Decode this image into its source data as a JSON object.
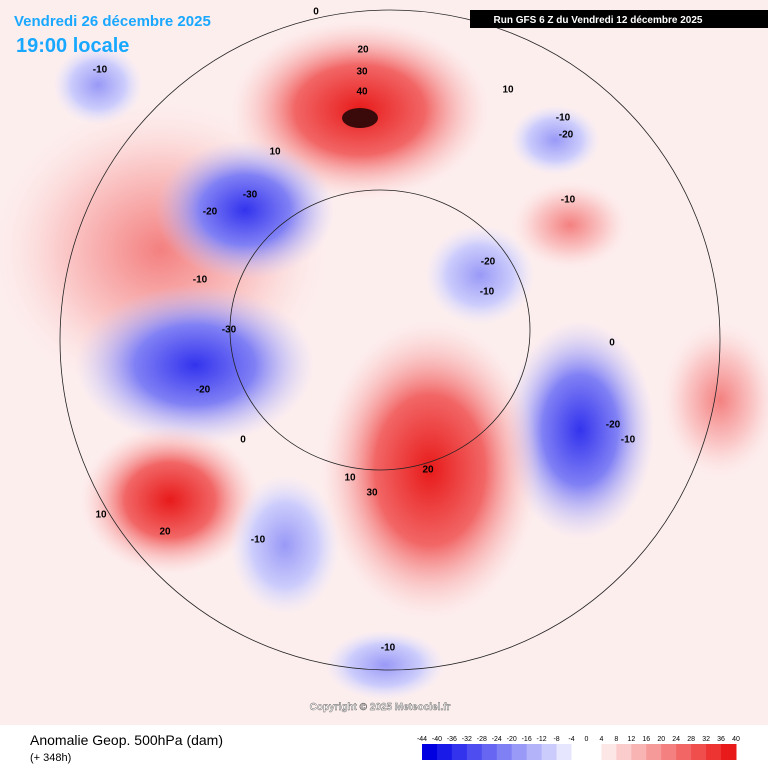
{
  "header": {
    "valid_date": "Vendredi 26 décembre 2025",
    "local_time": "19:00 locale",
    "run": "Run GFS 6 Z du Vendredi 12 décembre 2025"
  },
  "footer": {
    "title": "Anomalie Geop. 500hPa (dam)",
    "lead": "(+ 348h)",
    "copyright": "Copyright © 2025 Meteociel.fr"
  },
  "contour_labels": [
    "0",
    "-10",
    "20",
    "30",
    "40",
    "10",
    "-10",
    "-20",
    "10",
    "-30",
    "-20",
    "-10",
    "-20",
    "-10",
    "-10",
    "-30",
    "-20",
    "0",
    "0",
    "-20",
    "-10",
    "20",
    "30",
    "10",
    "10",
    "20",
    "-10",
    "-10"
  ],
  "scale": {
    "ticks": [
      -44,
      -40,
      -36,
      -32,
      -28,
      -24,
      -20,
      -16,
      -12,
      -8,
      -4,
      0,
      4,
      8,
      12,
      16,
      20,
      24,
      28,
      32,
      36,
      40
    ],
    "colors": [
      "#0000e0",
      "#1a1ae8",
      "#3333ee",
      "#4d4df0",
      "#6666f2",
      "#8080f5",
      "#9999f7",
      "#b3b3fa",
      "#ccccfc",
      "#e6e6fe",
      "#ffffff",
      "#ffffff",
      "#fde6e6",
      "#fbcccc",
      "#f8b3b3",
      "#f69999",
      "#f48080",
      "#f26666",
      "#f04d4d",
      "#ee3333",
      "#e81a1a"
    ]
  }
}
